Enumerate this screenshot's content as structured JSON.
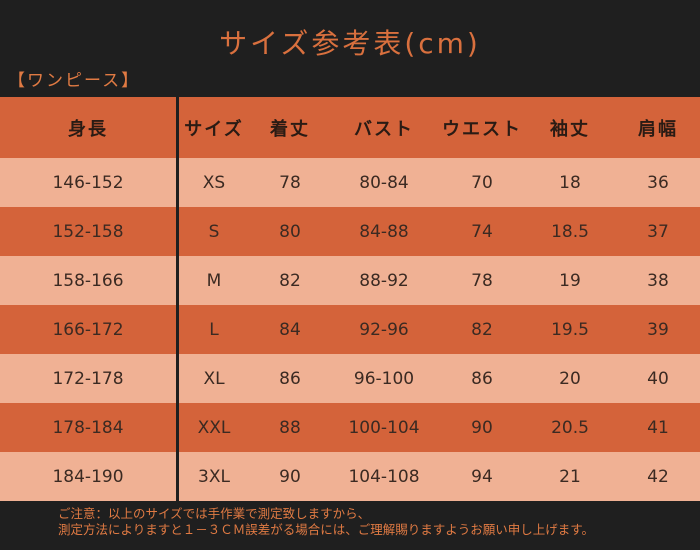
{
  "title": "サイズ参考表(cm)",
  "section_label": "【ワンピース】",
  "headers": [
    "身長",
    "サイズ",
    "着丈",
    "バスト",
    "ウエスト",
    "袖丈",
    "肩幅"
  ],
  "rows": [
    [
      "146-152",
      "XS",
      "78",
      "80-84",
      "70",
      "18",
      "36"
    ],
    [
      "152-158",
      "S",
      "80",
      "84-88",
      "74",
      "18.5",
      "37"
    ],
    [
      "158-166",
      "M",
      "82",
      "88-92",
      "78",
      "19",
      "38"
    ],
    [
      "166-172",
      "L",
      "84",
      "92-96",
      "82",
      "19.5",
      "39"
    ],
    [
      "172-178",
      "XL",
      "86",
      "96-100",
      "86",
      "20",
      "40"
    ],
    [
      "178-184",
      "XXL",
      "88",
      "100-104",
      "90",
      "20.5",
      "41"
    ],
    [
      "184-190",
      "3XL",
      "90",
      "104-108",
      "94",
      "21",
      "42"
    ]
  ],
  "notes": [
    "ご注意：以上のサイズでは手作業で測定致しますから、",
    "測定方法によりますと１－３ＣＭ誤差がる場合には、ご理解賜りますようお願い申し上げます。"
  ],
  "colors": {
    "header_bg": "#d4633a",
    "row_dark": "#d4633a",
    "row_light": "#f0b194",
    "accent_text": "#e07a43"
  }
}
